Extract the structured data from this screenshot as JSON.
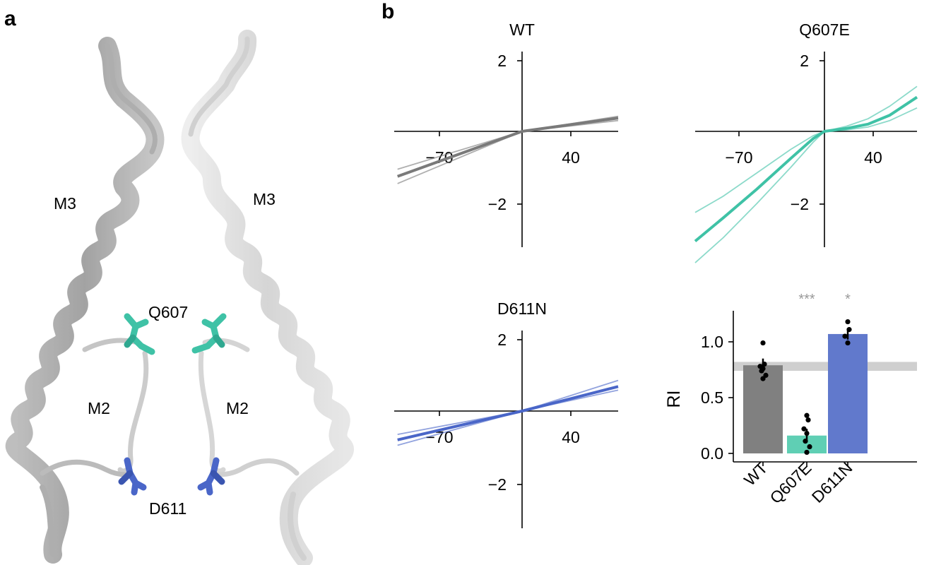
{
  "panel_a": {
    "letter": "a",
    "labels": {
      "m3_left": "M3",
      "m3_right": "M3",
      "m2_left": "M2",
      "m2_right": "M2",
      "q607": "Q607",
      "d611": "D611"
    },
    "colors": {
      "helix_left": "#7a7a7a",
      "helix_right": "#c8c8c8",
      "q607_residue": "#3fc2a6",
      "d611_residue": "#4a66c8"
    }
  },
  "panel_b": {
    "letter": "b"
  },
  "chart_data": [
    {
      "type": "line",
      "title": "WT",
      "x_ticks": [
        "−70",
        "40"
      ],
      "y_ticks": [
        "2",
        "−2"
      ],
      "xlim": [
        -115,
        85
      ],
      "ylim": [
        -3.2,
        2.5
      ],
      "color": "#7a7a7a",
      "series": [
        {
          "x": [
            -112,
            0,
            85
          ],
          "y": [
            -1.25,
            0,
            0.37
          ]
        },
        {
          "x": [
            -112,
            0,
            85
          ],
          "y": [
            -1.05,
            0,
            0.3
          ]
        },
        {
          "x": [
            -112,
            0,
            85
          ],
          "y": [
            -1.45,
            0,
            0.42
          ]
        }
      ]
    },
    {
      "type": "line",
      "title": "Q607E",
      "x_ticks": [
        "−70",
        "40"
      ],
      "y_ticks": [
        "2",
        "−2"
      ],
      "xlim": [
        -115,
        85
      ],
      "ylim": [
        -3.2,
        2.5
      ],
      "color": "#3fc2a6",
      "series": [
        {
          "x": [
            -115,
            -90,
            -60,
            -30,
            -10,
            0,
            20,
            40,
            60,
            85
          ],
          "y": [
            -3.05,
            -2.4,
            -1.6,
            -0.75,
            -0.2,
            0,
            0.08,
            0.2,
            0.45,
            0.95
          ]
        },
        {
          "x": [
            -115,
            -90,
            -60,
            -30,
            -10,
            0,
            20,
            40,
            60,
            85
          ],
          "y": [
            -2.25,
            -1.8,
            -1.15,
            -0.5,
            -0.12,
            0,
            0.04,
            0.12,
            0.3,
            0.65
          ]
        },
        {
          "x": [
            -115,
            -90,
            -60,
            -30,
            -10,
            0,
            20,
            40,
            60,
            85
          ],
          "y": [
            -3.65,
            -2.95,
            -2.0,
            -1.0,
            -0.3,
            0,
            0.14,
            0.35,
            0.7,
            1.25
          ]
        }
      ]
    },
    {
      "type": "line",
      "title": "D611N",
      "x_ticks": [
        "−70",
        "40"
      ],
      "y_ticks": [
        "2",
        "−2"
      ],
      "xlim": [
        -115,
        85
      ],
      "ylim": [
        -3.2,
        2.5
      ],
      "color": "#4a66c8",
      "series": [
        {
          "x": [
            -112,
            0,
            85
          ],
          "y": [
            -0.8,
            0,
            0.68
          ]
        },
        {
          "x": [
            -112,
            0,
            85
          ],
          "y": [
            -0.65,
            0,
            0.58
          ]
        },
        {
          "x": [
            -112,
            0,
            85
          ],
          "y": [
            -0.95,
            0,
            0.85
          ]
        }
      ]
    },
    {
      "type": "bar",
      "categories": [
        "WT",
        "Q607E",
        "D611N"
      ],
      "values": [
        0.79,
        0.16,
        1.07
      ],
      "errors": [
        0.06,
        0.06,
        0.05
      ],
      "colors": [
        "#808080",
        "#5fcfb4",
        "#6179cc"
      ],
      "points": [
        [
          0.99,
          0.8,
          0.78,
          0.76,
          0.74,
          0.7,
          0.67
        ],
        [
          0.34,
          0.3,
          0.22,
          0.18,
          0.11,
          0.06,
          0.01
        ],
        [
          1.18,
          1.11,
          1.05,
          0.99
        ]
      ],
      "significance": [
        "",
        "***",
        "*"
      ],
      "ylabel": "RI",
      "y_ticks": [
        "0.0",
        "0.5",
        "1.0"
      ],
      "ylim": [
        0,
        1.25
      ],
      "reference_band": [
        0.74,
        0.82
      ]
    }
  ]
}
